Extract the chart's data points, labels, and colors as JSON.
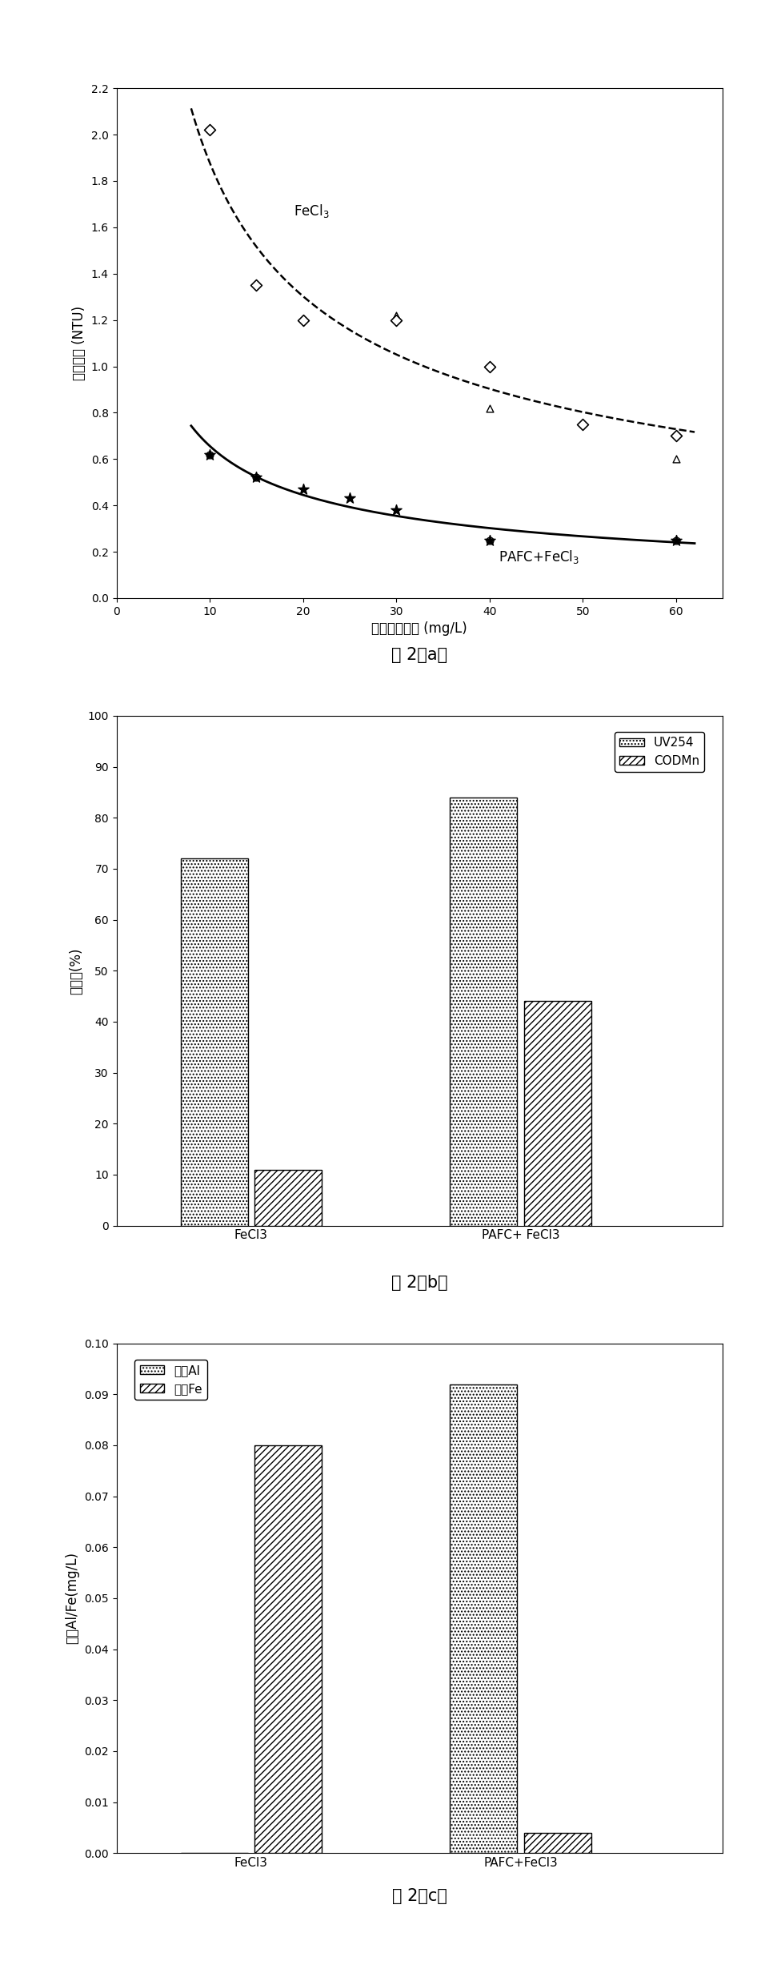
{
  "fig_a": {
    "xlabel": "混凝剂总投量 (mg/L)",
    "ylabel": "剩余浊度 (NTU)",
    "xlim": [
      0,
      65
    ],
    "ylim": [
      0.0,
      2.2
    ],
    "xticks": [
      0,
      10,
      20,
      30,
      40,
      50,
      60
    ],
    "yticks": [
      0.0,
      0.2,
      0.4,
      0.6,
      0.8,
      1.0,
      1.2,
      1.4,
      1.6,
      1.8,
      2.0,
      2.2
    ],
    "fecl3_x": [
      10,
      15,
      20,
      30,
      40,
      50,
      60
    ],
    "fecl3_y": [
      2.02,
      1.35,
      1.2,
      1.2,
      1.0,
      0.75,
      0.7
    ],
    "pafc_x": [
      10,
      15,
      20,
      25,
      30,
      40,
      60
    ],
    "pafc_y": [
      0.62,
      0.52,
      0.47,
      0.43,
      0.38,
      0.25,
      0.25
    ],
    "label_fecl3": "FeCl$_3$",
    "label_pafc": "PAFC+FeCl$_3$",
    "caption": "图 2（a）"
  },
  "fig_b": {
    "categories": [
      "FeCl3",
      "PAFC+ FeCl3"
    ],
    "uv254": [
      72,
      84
    ],
    "codmn": [
      11,
      44
    ],
    "ylabel": "去除率(%)",
    "ylim": [
      0,
      100
    ],
    "yticks": [
      0,
      10,
      20,
      30,
      40,
      50,
      60,
      70,
      80,
      90,
      100
    ],
    "legend_uv254": "UV254",
    "legend_codmn": "CODMn",
    "caption": "图 2（b）"
  },
  "fig_c": {
    "categories": [
      "FeCl3",
      "PAFC+FeCl3"
    ],
    "residual_al": [
      0.0,
      0.092
    ],
    "residual_fe": [
      0.08,
      0.004
    ],
    "ylabel": "剩余Al/Fe(mg/L)",
    "ylim": [
      0.0,
      0.1
    ],
    "yticks": [
      0.0,
      0.01,
      0.02,
      0.03,
      0.04,
      0.05,
      0.06,
      0.07,
      0.08,
      0.09,
      0.1
    ],
    "legend_al": "剩余Al",
    "legend_fe": "剩余Fe",
    "caption": "图 2（c）"
  }
}
